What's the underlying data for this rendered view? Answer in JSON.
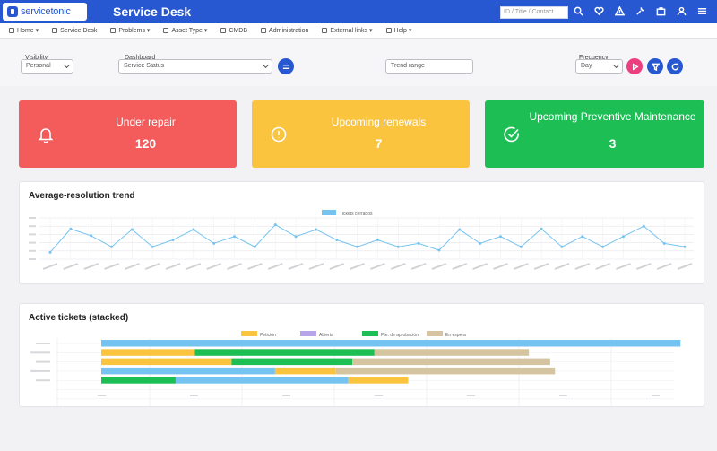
{
  "header": {
    "logo_text": "servicetonic",
    "app_title": "Service Desk",
    "search_placeholder": "ID / Title / Contact",
    "icons": [
      "search-icon",
      "heart-icon",
      "warning-icon",
      "wrench-icon",
      "briefcase-icon",
      "user-icon",
      "menu-icon"
    ]
  },
  "nav": {
    "items": [
      {
        "label": "Home",
        "dropdown": true
      },
      {
        "label": "Service Desk",
        "dropdown": false
      },
      {
        "label": "Problems",
        "dropdown": true
      },
      {
        "label": "Asset Type",
        "dropdown": true
      },
      {
        "label": "CMDB",
        "dropdown": false
      },
      {
        "label": "Administration",
        "dropdown": false
      },
      {
        "label": "External links",
        "dropdown": true
      },
      {
        "label": "Help",
        "dropdown": true
      }
    ]
  },
  "filters": {
    "visibility_label": "Visibility",
    "visibility_value": "Personal",
    "dashboard_label": "Dashboard",
    "dashboard_value": "Service Status",
    "trend_range_label": "Trend range",
    "frequency_label": "Frecuency",
    "frequency_value": "Day"
  },
  "cards": [
    {
      "title": "Under repair",
      "value": "120",
      "color": "#f45b5b",
      "icon": "bell-icon"
    },
    {
      "title": "Upcoming renewals",
      "value": "7",
      "color": "#fbc43f",
      "icon": "alert-circle-icon"
    },
    {
      "title": "Upcoming Preventive Maintenance",
      "value": "3",
      "color": "#1dbf55",
      "icon": "check-circle-icon"
    }
  ],
  "trend": {
    "title": "Average-resolution trend",
    "chart_data": {
      "type": "line",
      "series": [
        {
          "name": "Tickets cerrados",
          "color": "#74c3f0",
          "values": [
            1.0,
            4.4,
            3.4,
            1.8,
            4.3,
            1.8,
            2.8,
            4.3,
            2.3,
            3.3,
            1.8,
            5.0,
            3.3,
            4.3,
            2.8,
            1.8,
            2.8,
            1.8,
            2.3,
            1.3,
            4.3,
            2.3,
            3.3,
            1.8,
            4.4,
            1.8,
            3.3,
            1.8,
            3.3,
            4.8,
            2.3,
            1.8
          ]
        }
      ],
      "ylim": [
        0,
        6
      ],
      "grid": true,
      "legend": "top-center"
    }
  },
  "stacked": {
    "title": "Active tickets (stacked)",
    "chart_data": {
      "type": "bar",
      "orientation": "horizontal",
      "stacked": true,
      "categories_count": 6,
      "series": [
        {
          "name": "Petición",
          "color": "#fbc43f"
        },
        {
          "name": "Abierta",
          "color": "#b6a3e8"
        },
        {
          "name": "Pte. de aprobación",
          "color": "#1dbf55"
        },
        {
          "name": "En espera",
          "color": "#d4c4a0"
        }
      ],
      "rows": [
        [
          {
            "series": 4,
            "color": "#74c3f0",
            "value": 60
          }
        ],
        [
          {
            "color": "#fbc43f",
            "value": 9.7
          },
          {
            "color": "#1dbf55",
            "value": 18.6
          },
          {
            "color": "#d4c4a0",
            "value": 16
          }
        ],
        [
          {
            "color": "#fbc43f",
            "value": 13.5
          },
          {
            "color": "#1dbf55",
            "value": 12.5
          },
          {
            "color": "#d4c4a0",
            "value": 20.5
          }
        ],
        [
          {
            "color": "#74c3f0",
            "value": 18
          },
          {
            "color": "#fbc43f",
            "value": 6.3
          },
          {
            "color": "#d4c4a0",
            "value": 22.7
          }
        ],
        [
          {
            "color": "#1dbf55",
            "value": 7.7
          },
          {
            "color": "#74c3f0",
            "value": 17.9
          },
          {
            "color": "#fbc43f",
            "value": 6.2
          }
        ]
      ],
      "xlim": [
        0,
        62
      ]
    }
  }
}
